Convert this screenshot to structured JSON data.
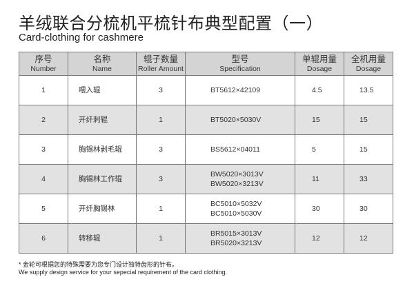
{
  "title": "羊绒联合分梳机平梳针布典型配置（一）",
  "subtitle": "Card-clothing for cashmere",
  "table": {
    "headers": [
      {
        "cn": "序号",
        "en": "Number"
      },
      {
        "cn": "名称",
        "en": "Name"
      },
      {
        "cn": "辊子数量",
        "en": "Roller Amount"
      },
      {
        "cn": "型号",
        "en": "Specification"
      },
      {
        "cn": "单辊用量",
        "en": "Dosage"
      },
      {
        "cn": "全机用量",
        "en": "Dosage"
      }
    ],
    "rows": [
      {
        "number": "1",
        "name": "喂入辊",
        "amount": "3",
        "spec": [
          "BT5612×42109"
        ],
        "dosage": "4.5",
        "total": "13.5"
      },
      {
        "number": "2",
        "name": "开纤刺辊",
        "amount": "1",
        "spec": [
          "BT5020×5030V"
        ],
        "dosage": "15",
        "total": "15"
      },
      {
        "number": "3",
        "name": "胸锡林剥毛辊",
        "amount": "3",
        "spec": [
          "BS5612×04011"
        ],
        "dosage": "5",
        "total": "15"
      },
      {
        "number": "4",
        "name": "胸锡林工作辊",
        "amount": "3",
        "spec": [
          "BW5020×3013V",
          "BW5020×3213V"
        ],
        "dosage": "11",
        "total": "33"
      },
      {
        "number": "5",
        "name": "开纤胸锡林",
        "amount": "1",
        "spec": [
          "BC5010×5032V",
          "BC5010×5030V"
        ],
        "dosage": "30",
        "total": "30"
      },
      {
        "number": "6",
        "name": "转移辊",
        "amount": "1",
        "spec": [
          "BR5015×3013V",
          "BR5020×3213V"
        ],
        "dosage": "12",
        "total": "12"
      }
    ]
  },
  "note": {
    "cn": "* 金轮可根据您的特殊需要为您专门设计独特齿形的针布。",
    "en": "We supply design service for your sepecial requirement of the card clothing."
  }
}
